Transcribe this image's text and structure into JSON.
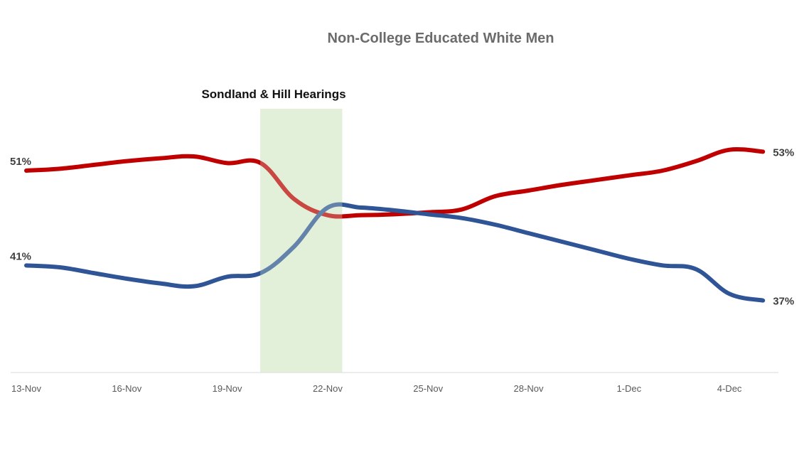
{
  "chart_data": {
    "type": "line",
    "title": "Non-College Educated White Men",
    "xlabel": "",
    "ylabel": "",
    "x_ticks": [
      "13-Nov",
      "16-Nov",
      "19-Nov",
      "22-Nov",
      "25-Nov",
      "28-Nov",
      "1-Dec",
      "4-Dec"
    ],
    "x": [
      "13-Nov",
      "14-Nov",
      "15-Nov",
      "16-Nov",
      "17-Nov",
      "18-Nov",
      "19-Nov",
      "20-Nov",
      "21-Nov",
      "22-Nov",
      "23-Nov",
      "24-Nov",
      "25-Nov",
      "26-Nov",
      "27-Nov",
      "28-Nov",
      "29-Nov",
      "30-Nov",
      "1-Dec",
      "2-Dec",
      "3-Dec",
      "4-Dec",
      "5-Dec"
    ],
    "ylim": [
      30,
      57
    ],
    "grid": false,
    "legend": "none",
    "series": [
      {
        "color": "#c00000",
        "values": [
          51,
          51.2,
          51.6,
          52,
          52.3,
          52.5,
          51.8,
          51.8,
          48,
          46.3,
          46.3,
          46.4,
          46.6,
          46.9,
          48.3,
          48.9,
          49.5,
          50.0,
          50.5,
          51.0,
          52.0,
          53.2,
          53.0
        ],
        "end_labels": {
          "first": "51%",
          "last": "53%"
        }
      },
      {
        "color": "#2f5597",
        "values": [
          41,
          40.8,
          40.2,
          39.6,
          39.1,
          38.8,
          39.8,
          40.2,
          43.0,
          47.1,
          47.1,
          46.8,
          46.4,
          46.0,
          45.3,
          44.4,
          43.5,
          42.6,
          41.7,
          41.0,
          40.6,
          38.0,
          37.3
        ],
        "end_labels": {
          "first": "41%",
          "last": "37%"
        }
      }
    ],
    "highlight": {
      "label": "Sondland & Hill Hearings",
      "start": "20-Nov",
      "end": "22-Nov",
      "color": "#e2f0d9"
    }
  }
}
